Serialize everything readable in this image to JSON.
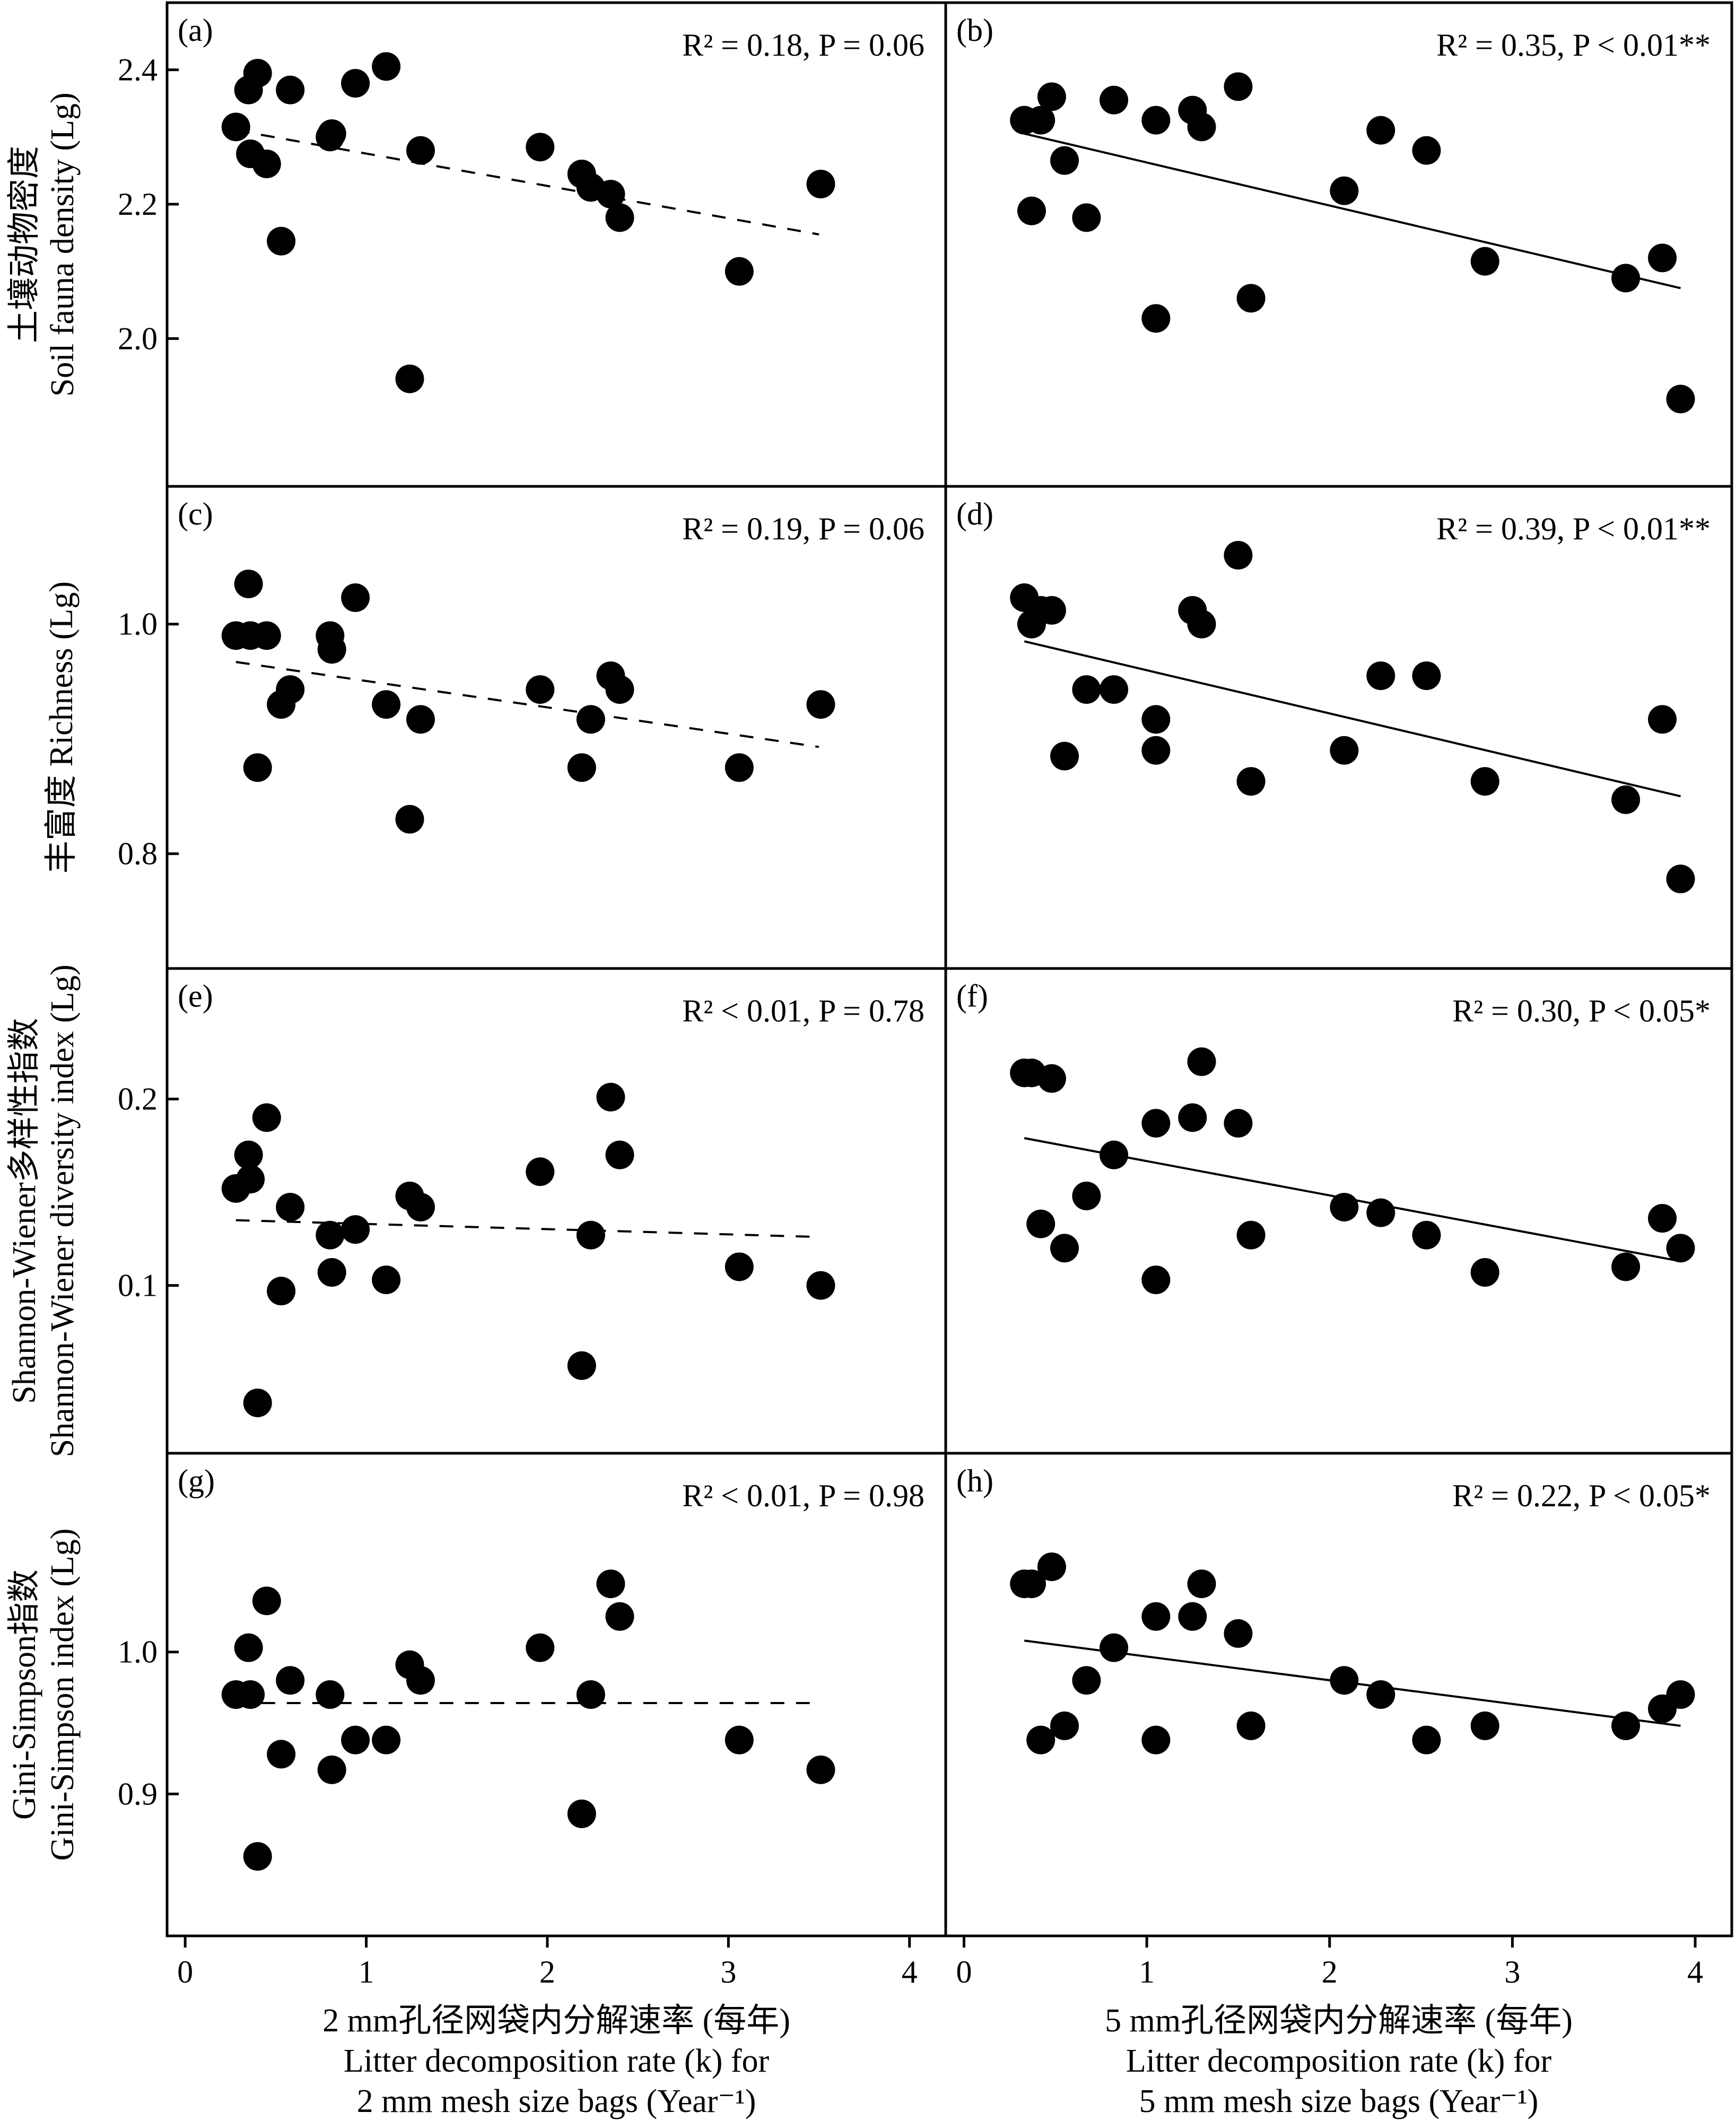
{
  "x_axis": {
    "range": [
      -0.1,
      4.2
    ],
    "ticks": [
      0,
      1,
      2,
      3,
      4
    ],
    "tick_labels": [
      "0",
      "1",
      "2",
      "3",
      "4"
    ]
  },
  "x_labels": {
    "left": [
      "2 mm孔径网袋内分解速率 (每年)",
      "Litter decomposition rate (k) for",
      "2 mm mesh size bags (Year⁻¹)"
    ],
    "right": [
      "5 mm孔径网袋内分解速率 (每年)",
      "Litter decomposition rate (k) for",
      "5 mm mesh size bags (Year⁻¹)"
    ]
  },
  "rows": [
    {
      "ylabel": [
        "土壤动物密度",
        "Soil fauna density (Lg)"
      ],
      "ylim": [
        1.78,
        2.5
      ],
      "yticks": [
        2.0,
        2.2,
        2.4
      ],
      "ytick_labels": [
        "2.0",
        "2.2",
        "2.4"
      ]
    },
    {
      "ylabel": [
        "丰富度 Richness (Lg)"
      ],
      "ylim": [
        0.7,
        1.12
      ],
      "yticks": [
        0.8,
        1.0
      ],
      "ytick_labels": [
        "0.8",
        "1.0"
      ]
    },
    {
      "ylabel": [
        "Shannon-Wiener多样性指数",
        "Shannon-Wiener diversity index (Lg)"
      ],
      "ylim": [
        0.01,
        0.27
      ],
      "yticks": [
        0.1,
        0.2
      ],
      "ytick_labels": [
        "0.1",
        "0.2"
      ]
    },
    {
      "ylabel": [
        "Gini-Simpson指数",
        "Gini-Simpson index (Lg)"
      ],
      "ylim": [
        0.8,
        1.14
      ],
      "yticks": [
        0.9,
        1.0
      ],
      "ytick_labels": [
        "0.9",
        "1.0"
      ]
    }
  ],
  "chart_data": [
    {
      "type": "scatter",
      "panel": "(a)",
      "row": 0,
      "col": 0,
      "annotation": "R² = 0.18, P = 0.06",
      "fit": {
        "style": "dashed",
        "x": [
          0.28,
          3.5
        ],
        "y": [
          2.31,
          2.155
        ]
      },
      "points": [
        {
          "x": 0.28,
          "y": 2.315
        },
        {
          "x": 0.35,
          "y": 2.37
        },
        {
          "x": 0.36,
          "y": 2.275
        },
        {
          "x": 0.4,
          "y": 2.395
        },
        {
          "x": 0.45,
          "y": 2.26
        },
        {
          "x": 0.53,
          "y": 2.145
        },
        {
          "x": 0.58,
          "y": 2.37
        },
        {
          "x": 0.8,
          "y": 2.3
        },
        {
          "x": 0.81,
          "y": 2.305
        },
        {
          "x": 0.94,
          "y": 2.38
        },
        {
          "x": 1.11,
          "y": 2.405
        },
        {
          "x": 1.24,
          "y": 1.94
        },
        {
          "x": 1.3,
          "y": 2.28
        },
        {
          "x": 1.96,
          "y": 2.285
        },
        {
          "x": 2.19,
          "y": 2.245
        },
        {
          "x": 2.24,
          "y": 2.225
        },
        {
          "x": 2.35,
          "y": 2.215
        },
        {
          "x": 2.4,
          "y": 2.18
        },
        {
          "x": 3.06,
          "y": 2.1
        },
        {
          "x": 3.51,
          "y": 2.23
        }
      ]
    },
    {
      "type": "scatter",
      "panel": "(b)",
      "row": 0,
      "col": 1,
      "annotation": "R² = 0.35, P < 0.01**",
      "fit": {
        "style": "solid",
        "x": [
          0.33,
          3.92
        ],
        "y": [
          2.305,
          2.075
        ]
      },
      "points": [
        {
          "x": 0.33,
          "y": 2.325
        },
        {
          "x": 0.37,
          "y": 2.19
        },
        {
          "x": 0.42,
          "y": 2.325
        },
        {
          "x": 0.48,
          "y": 2.36
        },
        {
          "x": 0.55,
          "y": 2.265
        },
        {
          "x": 0.67,
          "y": 2.18
        },
        {
          "x": 0.82,
          "y": 2.355
        },
        {
          "x": 1.05,
          "y": 2.03
        },
        {
          "x": 1.05,
          "y": 2.325
        },
        {
          "x": 1.25,
          "y": 2.34
        },
        {
          "x": 1.3,
          "y": 2.315
        },
        {
          "x": 1.5,
          "y": 2.375
        },
        {
          "x": 1.57,
          "y": 2.06
        },
        {
          "x": 2.08,
          "y": 2.22
        },
        {
          "x": 2.28,
          "y": 2.31
        },
        {
          "x": 2.53,
          "y": 2.28
        },
        {
          "x": 2.85,
          "y": 2.115
        },
        {
          "x": 3.62,
          "y": 2.09
        },
        {
          "x": 3.82,
          "y": 2.12
        },
        {
          "x": 3.92,
          "y": 1.91
        }
      ]
    },
    {
      "type": "scatter",
      "panel": "(c)",
      "row": 1,
      "col": 0,
      "annotation": "R² = 0.19, P = 0.06",
      "fit": {
        "style": "dashed",
        "x": [
          0.28,
          3.5
        ],
        "y": [
          0.967,
          0.893
        ]
      },
      "points": [
        {
          "x": 0.28,
          "y": 0.99
        },
        {
          "x": 0.35,
          "y": 1.035
        },
        {
          "x": 0.36,
          "y": 0.99
        },
        {
          "x": 0.4,
          "y": 0.875
        },
        {
          "x": 0.45,
          "y": 0.99
        },
        {
          "x": 0.53,
          "y": 0.93
        },
        {
          "x": 0.58,
          "y": 0.943
        },
        {
          "x": 0.8,
          "y": 0.99
        },
        {
          "x": 0.81,
          "y": 0.978
        },
        {
          "x": 0.94,
          "y": 1.023
        },
        {
          "x": 1.11,
          "y": 0.93
        },
        {
          "x": 1.24,
          "y": 0.83
        },
        {
          "x": 1.3,
          "y": 0.917
        },
        {
          "x": 1.96,
          "y": 0.943
        },
        {
          "x": 2.19,
          "y": 0.875
        },
        {
          "x": 2.24,
          "y": 0.917
        },
        {
          "x": 2.35,
          "y": 0.955
        },
        {
          "x": 2.4,
          "y": 0.943
        },
        {
          "x": 3.06,
          "y": 0.875
        },
        {
          "x": 3.51,
          "y": 0.93
        }
      ]
    },
    {
      "type": "scatter",
      "panel": "(d)",
      "row": 1,
      "col": 1,
      "annotation": "R² = 0.39, P < 0.01**",
      "fit": {
        "style": "solid",
        "x": [
          0.33,
          3.92
        ],
        "y": [
          0.985,
          0.85
        ]
      },
      "points": [
        {
          "x": 0.33,
          "y": 1.023
        },
        {
          "x": 0.37,
          "y": 1.0
        },
        {
          "x": 0.42,
          "y": 1.012
        },
        {
          "x": 0.48,
          "y": 1.012
        },
        {
          "x": 0.55,
          "y": 0.885
        },
        {
          "x": 0.67,
          "y": 0.943
        },
        {
          "x": 0.82,
          "y": 0.943
        },
        {
          "x": 1.05,
          "y": 0.89
        },
        {
          "x": 1.05,
          "y": 0.917
        },
        {
          "x": 1.25,
          "y": 1.012
        },
        {
          "x": 1.3,
          "y": 1.0
        },
        {
          "x": 1.5,
          "y": 1.06
        },
        {
          "x": 1.57,
          "y": 0.863
        },
        {
          "x": 2.08,
          "y": 0.89
        },
        {
          "x": 2.28,
          "y": 0.955
        },
        {
          "x": 2.53,
          "y": 0.955
        },
        {
          "x": 2.85,
          "y": 0.863
        },
        {
          "x": 3.62,
          "y": 0.847
        },
        {
          "x": 3.82,
          "y": 0.917
        },
        {
          "x": 3.92,
          "y": 0.778
        }
      ]
    },
    {
      "type": "scatter",
      "panel": "(e)",
      "row": 2,
      "col": 0,
      "annotation": "R² < 0.01, P = 0.78",
      "fit": {
        "style": "dashed",
        "x": [
          0.28,
          3.5
        ],
        "y": [
          0.135,
          0.126
        ]
      },
      "points": [
        {
          "x": 0.28,
          "y": 0.152
        },
        {
          "x": 0.35,
          "y": 0.17
        },
        {
          "x": 0.36,
          "y": 0.157
        },
        {
          "x": 0.4,
          "y": 0.037
        },
        {
          "x": 0.45,
          "y": 0.19
        },
        {
          "x": 0.53,
          "y": 0.097
        },
        {
          "x": 0.58,
          "y": 0.142
        },
        {
          "x": 0.8,
          "y": 0.127
        },
        {
          "x": 0.81,
          "y": 0.107
        },
        {
          "x": 0.94,
          "y": 0.13
        },
        {
          "x": 1.11,
          "y": 0.103
        },
        {
          "x": 1.24,
          "y": 0.148
        },
        {
          "x": 1.3,
          "y": 0.142
        },
        {
          "x": 1.96,
          "y": 0.161
        },
        {
          "x": 2.19,
          "y": 0.057
        },
        {
          "x": 2.24,
          "y": 0.127
        },
        {
          "x": 2.35,
          "y": 0.201
        },
        {
          "x": 2.4,
          "y": 0.17
        },
        {
          "x": 3.06,
          "y": 0.11
        },
        {
          "x": 3.51,
          "y": 0.1
        }
      ]
    },
    {
      "type": "scatter",
      "panel": "(f)",
      "row": 2,
      "col": 1,
      "annotation": "R² = 0.30, P < 0.05*",
      "fit": {
        "style": "solid",
        "x": [
          0.33,
          3.92
        ],
        "y": [
          0.179,
          0.113
        ]
      },
      "points": [
        {
          "x": 0.33,
          "y": 0.214
        },
        {
          "x": 0.37,
          "y": 0.214
        },
        {
          "x": 0.42,
          "y": 0.133
        },
        {
          "x": 0.48,
          "y": 0.211
        },
        {
          "x": 0.55,
          "y": 0.12
        },
        {
          "x": 0.67,
          "y": 0.148
        },
        {
          "x": 0.82,
          "y": 0.17
        },
        {
          "x": 1.05,
          "y": 0.103
        },
        {
          "x": 1.05,
          "y": 0.187
        },
        {
          "x": 1.25,
          "y": 0.19
        },
        {
          "x": 1.3,
          "y": 0.22
        },
        {
          "x": 1.5,
          "y": 0.187
        },
        {
          "x": 1.57,
          "y": 0.127
        },
        {
          "x": 2.08,
          "y": 0.142
        },
        {
          "x": 2.28,
          "y": 0.139
        },
        {
          "x": 2.53,
          "y": 0.127
        },
        {
          "x": 2.85,
          "y": 0.107
        },
        {
          "x": 3.62,
          "y": 0.11
        },
        {
          "x": 3.82,
          "y": 0.136
        },
        {
          "x": 3.92,
          "y": 0.12
        }
      ]
    },
    {
      "type": "scatter",
      "panel": "(g)",
      "row": 3,
      "col": 0,
      "annotation": "R² < 0.01, P = 0.98",
      "fit": {
        "style": "dashed",
        "x": [
          0.28,
          3.5
        ],
        "y": [
          0.964,
          0.964
        ]
      },
      "points": [
        {
          "x": 0.28,
          "y": 0.97
        },
        {
          "x": 0.35,
          "y": 1.003
        },
        {
          "x": 0.36,
          "y": 0.97
        },
        {
          "x": 0.4,
          "y": 0.856
        },
        {
          "x": 0.45,
          "y": 1.036
        },
        {
          "x": 0.53,
          "y": 0.928
        },
        {
          "x": 0.58,
          "y": 0.98
        },
        {
          "x": 0.8,
          "y": 0.97
        },
        {
          "x": 0.81,
          "y": 0.917
        },
        {
          "x": 0.94,
          "y": 0.938
        },
        {
          "x": 1.11,
          "y": 0.938
        },
        {
          "x": 1.24,
          "y": 0.991
        },
        {
          "x": 1.3,
          "y": 0.98
        },
        {
          "x": 1.96,
          "y": 1.003
        },
        {
          "x": 2.19,
          "y": 0.886
        },
        {
          "x": 2.24,
          "y": 0.97
        },
        {
          "x": 2.35,
          "y": 1.048
        },
        {
          "x": 2.4,
          "y": 1.025
        },
        {
          "x": 3.06,
          "y": 0.938
        },
        {
          "x": 3.51,
          "y": 0.917
        }
      ]
    },
    {
      "type": "scatter",
      "panel": "(h)",
      "row": 3,
      "col": 1,
      "annotation": "R² = 0.22, P < 0.05*",
      "fit": {
        "style": "solid",
        "x": [
          0.33,
          3.92
        ],
        "y": [
          1.008,
          0.948
        ]
      },
      "points": [
        {
          "x": 0.33,
          "y": 1.048
        },
        {
          "x": 0.37,
          "y": 1.048
        },
        {
          "x": 0.42,
          "y": 0.938
        },
        {
          "x": 0.48,
          "y": 1.06
        },
        {
          "x": 0.55,
          "y": 0.948
        },
        {
          "x": 0.67,
          "y": 0.98
        },
        {
          "x": 0.82,
          "y": 1.003
        },
        {
          "x": 1.05,
          "y": 0.938
        },
        {
          "x": 1.05,
          "y": 1.025
        },
        {
          "x": 1.25,
          "y": 1.025
        },
        {
          "x": 1.3,
          "y": 1.048
        },
        {
          "x": 1.5,
          "y": 1.013
        },
        {
          "x": 1.57,
          "y": 0.948
        },
        {
          "x": 2.08,
          "y": 0.98
        },
        {
          "x": 2.28,
          "y": 0.97
        },
        {
          "x": 2.53,
          "y": 0.938
        },
        {
          "x": 2.85,
          "y": 0.948
        },
        {
          "x": 3.62,
          "y": 0.948
        },
        {
          "x": 3.82,
          "y": 0.96
        },
        {
          "x": 3.92,
          "y": 0.97
        }
      ]
    }
  ]
}
